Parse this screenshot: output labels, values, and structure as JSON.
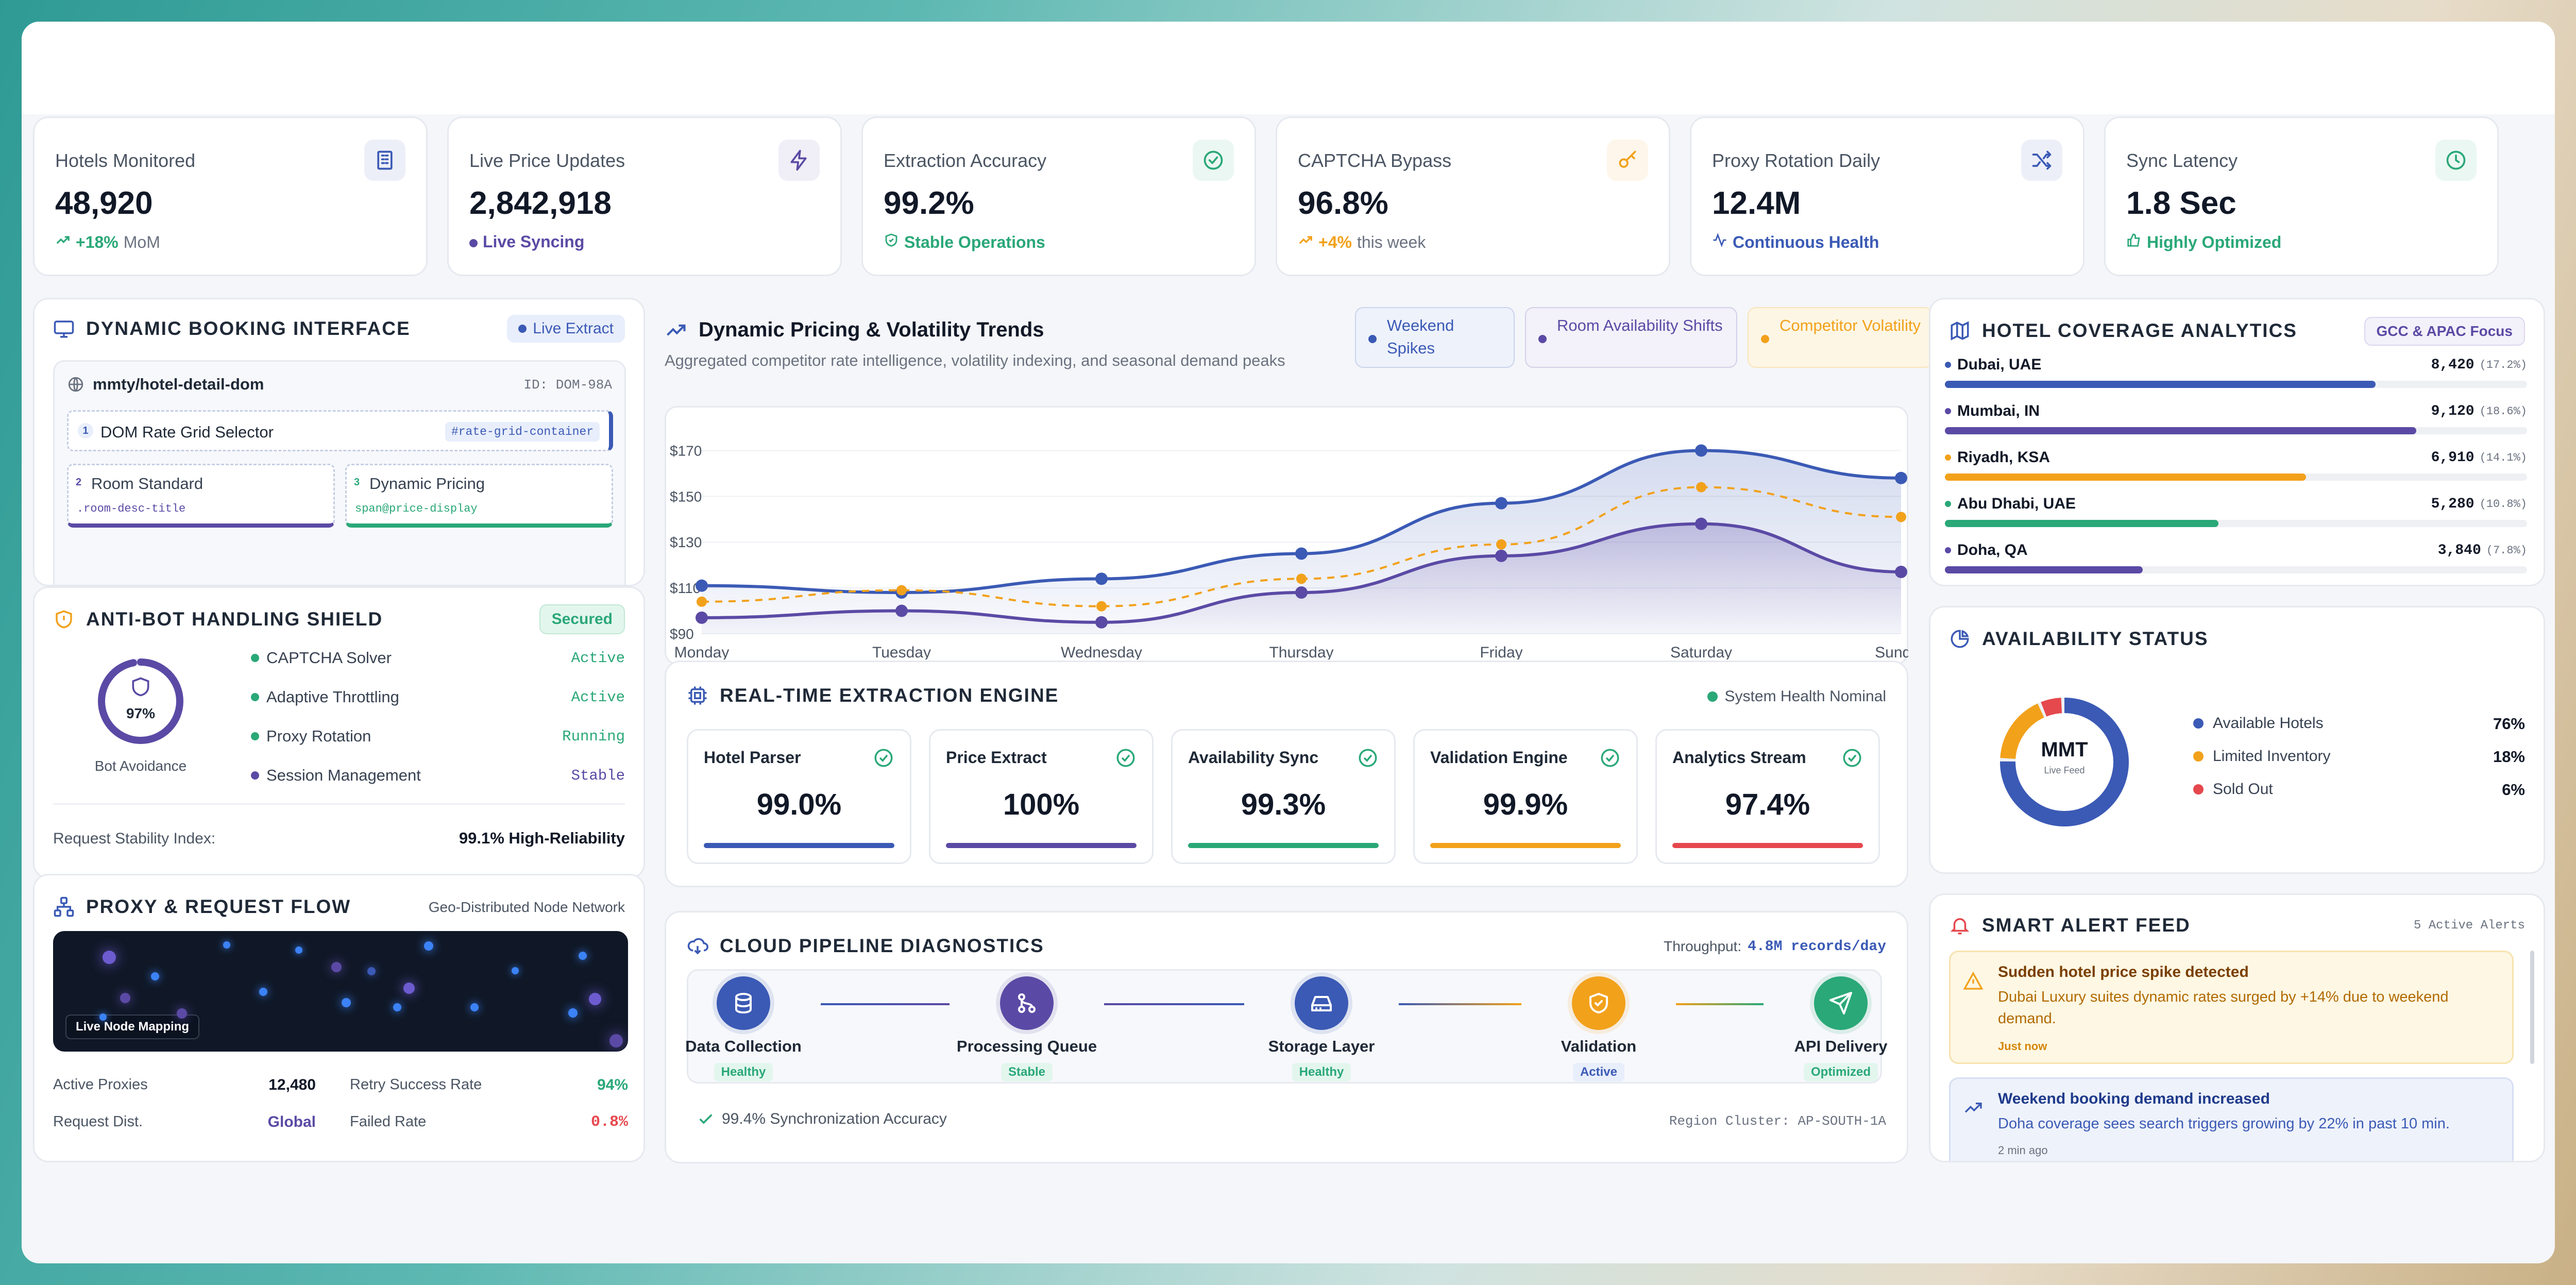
{
  "kpis": [
    {
      "label": "Hotels Monitored",
      "value": "48,920",
      "trend": "+18%",
      "trend_suffix": "MoM",
      "icon": "building-icon",
      "color": "#3b5ab5"
    },
    {
      "label": "Live Price Updates",
      "value": "2,842,918",
      "trend": "Live Syncing",
      "icon": "lightning-icon",
      "color": "#5b4aa5"
    },
    {
      "label": "Extraction Accuracy",
      "value": "99.2%",
      "trend": "Stable Operations",
      "icon": "check-circle-icon",
      "color": "#2aa878"
    },
    {
      "label": "CAPTCHA Bypass",
      "value": "96.8%",
      "trend": "+4%",
      "trend_suffix": "this week",
      "icon": "key-icon",
      "color": "#f2a11b"
    },
    {
      "label": "Proxy Rotation Daily",
      "value": "12.4M",
      "trend": "Continuous Health",
      "icon": "shuffle-icon",
      "color": "#3b5ab5"
    },
    {
      "label": "Sync Latency",
      "value": "1.8 Sec",
      "trend": "Highly Optimized",
      "icon": "clock-icon",
      "color": "#2aa878"
    }
  ],
  "booking": {
    "title": "DYNAMIC BOOKING INTERFACE",
    "badge": "Live Extract",
    "url": "mmty/hotel-detail-dom",
    "id": "ID: DOM-98A",
    "selector_num": "1",
    "selector_label": "DOM Rate Grid Selector",
    "selector_code": "#rate-grid-container",
    "room_num": "2",
    "room_label": "Room Standard",
    "room_code": ".room-desc-title",
    "pricing_num": "3",
    "pricing_label": "Dynamic Pricing",
    "pricing_code": "span@price-display"
  },
  "antibot": {
    "title": "ANTI-BOT HANDLING SHIELD",
    "badge": "Secured",
    "ring_value": "97%",
    "ring_fraction": 0.97,
    "ring_label": "Bot Avoidance",
    "items": [
      {
        "name": "CAPTCHA Solver",
        "status": "Active",
        "color": "#2aa878"
      },
      {
        "name": "Adaptive Throttling",
        "status": "Active",
        "color": "#2aa878"
      },
      {
        "name": "Proxy Rotation",
        "status": "Running",
        "color": "#2aa878"
      },
      {
        "name": "Session Management",
        "status": "Stable",
        "color": "#5b4aa5"
      }
    ],
    "stability_label": "Request Stability Index:",
    "stability_value": "99.1% High-Reliability"
  },
  "proxy": {
    "title": "PROXY & REQUEST FLOW",
    "subtitle": "Geo-Distributed Node Network",
    "map_label": "Live Node Mapping",
    "stats": [
      {
        "label": "Active Proxies",
        "value": "12,480",
        "color": "#111827"
      },
      {
        "label": "Retry Success Rate",
        "value": "94%",
        "color": "#2aa878"
      },
      {
        "label": "Request Dist.",
        "value": "Global",
        "color": "#5b4aa5"
      },
      {
        "label": "Failed Rate",
        "value": "0.8%",
        "color": "#e5484d"
      }
    ]
  },
  "trends": {
    "title": "Dynamic Pricing & Volatility Trends",
    "subtitle": "Aggregated competitor rate intelligence, volatility indexing, and seasonal demand peaks",
    "legend": [
      {
        "label": "Weekend Spikes",
        "color": "#3b5ab5",
        "bg": "#eef2fb",
        "text": "#3b5ab5"
      },
      {
        "label": "Room Availability Shifts",
        "color": "#5b4aa5",
        "bg": "#f3f1f9",
        "text": "#5b4aa5"
      },
      {
        "label": "Competitor Volatility",
        "color": "#f2a11b",
        "bg": "#fdf6e4",
        "text": "#f2a11b"
      }
    ]
  },
  "chart_data": {
    "type": "line",
    "categories": [
      "Monday",
      "Tuesday",
      "Wednesday",
      "Thursday",
      "Friday",
      "Saturday",
      "Sunday"
    ],
    "yticks": [
      "$90",
      "$110",
      "$130",
      "$150",
      "$170"
    ],
    "ylim": [
      90,
      180
    ],
    "series": [
      {
        "name": "Weekend Spikes",
        "values": [
          111,
          108,
          114,
          125,
          147,
          170,
          158
        ],
        "color": "#3b5ab5"
      },
      {
        "name": "Competitor Volatility",
        "values": [
          104,
          109,
          102,
          114,
          129,
          154,
          141
        ],
        "color": "#f2a11b"
      },
      {
        "name": "Room Availability Shifts",
        "values": [
          97,
          100,
          95,
          108,
          124,
          138,
          117
        ],
        "color": "#5b4aa5"
      }
    ]
  },
  "engine": {
    "title": "REAL-TIME EXTRACTION ENGINE",
    "status": "System Health Nominal",
    "tiles": [
      {
        "name": "Hotel Parser",
        "value": "99.0%",
        "color": "#3b5ab5"
      },
      {
        "name": "Price Extract",
        "value": "100%",
        "color": "#5b4aa5"
      },
      {
        "name": "Availability Sync",
        "value": "99.3%",
        "color": "#2aa878"
      },
      {
        "name": "Validation Engine",
        "value": "99.9%",
        "color": "#f2a11b"
      },
      {
        "name": "Analytics Stream",
        "value": "97.4%",
        "color": "#e5484d"
      }
    ]
  },
  "pipeline": {
    "title": "CLOUD PIPELINE DIAGNOSTICS",
    "throughput_label": "Throughput:",
    "throughput_value": "4.8M records/day",
    "nodes": [
      {
        "label": "Data Collection",
        "status": "Healthy",
        "color": "#3b5ab5",
        "icon": "database-icon",
        "sc": "#2aa878",
        "sb": "#e3f6ee"
      },
      {
        "label": "Processing Queue",
        "status": "Stable",
        "color": "#5b4aa5",
        "icon": "git-merge-icon",
        "sc": "#2aa878",
        "sb": "#e3f6ee"
      },
      {
        "label": "Storage Layer",
        "status": "Healthy",
        "color": "#3b5ab5",
        "icon": "hard-drive-icon",
        "sc": "#2aa878",
        "sb": "#e3f6ee"
      },
      {
        "label": "Validation",
        "status": "Active",
        "color": "#f2a11b",
        "icon": "shield-check-icon",
        "sc": "#3b5ab5",
        "sb": "#e8eefb"
      },
      {
        "label": "API Delivery",
        "status": "Optimized",
        "color": "#2aa878",
        "icon": "send-icon",
        "sc": "#2aa878",
        "sb": "#e3f6ee"
      }
    ],
    "accuracy": "99.4% Synchronization Accuracy",
    "region": "Region Cluster: AP-SOUTH-1A"
  },
  "coverage": {
    "title": "HOTEL COVERAGE ANALYTICS",
    "badge": "GCC & APAC Focus",
    "rows": [
      {
        "city": "Dubai, UAE",
        "count": "8,420",
        "pct": "(17.2%)",
        "fill": 0.74,
        "color": "#3b5ab5"
      },
      {
        "city": "Mumbai, IN",
        "count": "9,120",
        "pct": "(18.6%)",
        "fill": 0.81,
        "color": "#5b4aa5"
      },
      {
        "city": "Riyadh, KSA",
        "count": "6,910",
        "pct": "(14.1%)",
        "fill": 0.62,
        "color": "#f2a11b"
      },
      {
        "city": "Abu Dhabi, UAE",
        "count": "5,280",
        "pct": "(10.8%)",
        "fill": 0.47,
        "color": "#2aa878"
      },
      {
        "city": "Doha, QA",
        "count": "3,840",
        "pct": "(7.8%)",
        "fill": 0.34,
        "color": "#5b4aa5"
      }
    ]
  },
  "availability": {
    "title": "AVAILABILITY STATUS",
    "center": "MMT",
    "center_sub": "Live Feed",
    "slices": [
      {
        "label": "Available Hotels",
        "value": "76%",
        "fraction": 0.76,
        "color": "#3b5ab5"
      },
      {
        "label": "Limited Inventory",
        "value": "18%",
        "fraction": 0.18,
        "color": "#f2a11b"
      },
      {
        "label": "Sold Out",
        "value": "6%",
        "fraction": 0.06,
        "color": "#e5484d"
      }
    ]
  },
  "alerts": {
    "title": "SMART ALERT FEED",
    "count": "5 Active Alerts",
    "items": [
      {
        "title": "Sudden hotel price spike detected",
        "body": "Dubai Luxury suites dynamic rates surged by +14% due to weekend demand.",
        "time": "Just now"
      },
      {
        "title": "Weekend booking demand increased",
        "body": "Doha coverage sees search triggers growing by 22% in past 10 min.",
        "time": "2 min ago"
      }
    ]
  }
}
